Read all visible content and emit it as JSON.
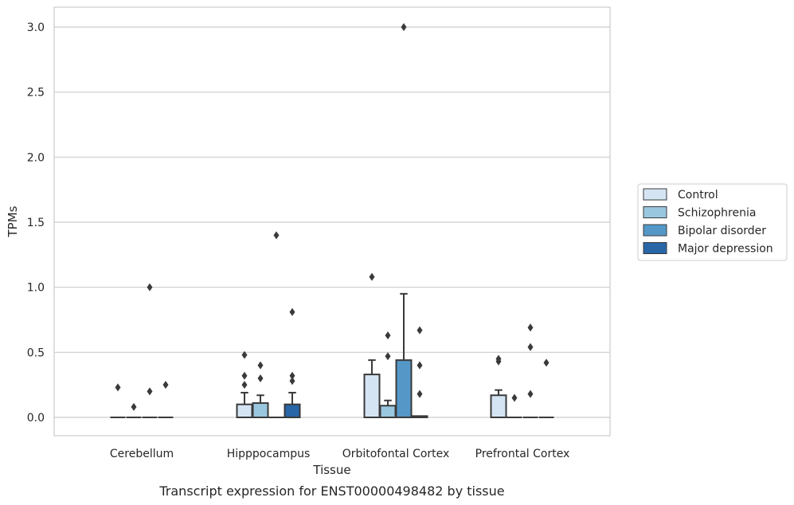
{
  "chart_data": {
    "type": "box",
    "title": "Transcript expression for ENST00000498482 by tissue",
    "xlabel": "Tissue",
    "ylabel": "TPMs",
    "ylim": [
      -0.15,
      3.15
    ],
    "yticks": [
      0.0,
      0.5,
      1.0,
      1.5,
      2.0,
      2.5,
      3.0
    ],
    "ytick_labels": [
      "0.0",
      "0.5",
      "1.0",
      "1.5",
      "2.0",
      "2.5",
      "3.0"
    ],
    "grid": "horizontal",
    "legend_position": "right",
    "categories": [
      "Cerebellum",
      "Hipppocampus",
      "Orbitofontal Cortex",
      "Prefrontal Cortex"
    ],
    "series": [
      {
        "name": "Control",
        "color": "#d4e4f3",
        "boxes": [
          {
            "q1": 0,
            "median": 0,
            "q3": 0,
            "whisker_low": 0,
            "whisker_high": 0,
            "outliers": [
              0.23
            ]
          },
          {
            "q1": 0,
            "median": 0,
            "q3": 0.1,
            "whisker_low": 0,
            "whisker_high": 0.19,
            "outliers": [
              0.25,
              0.32,
              0.48
            ]
          },
          {
            "q1": 0,
            "median": 0,
            "q3": 0.33,
            "whisker_low": 0,
            "whisker_high": 0.44,
            "outliers": [
              1.08
            ]
          },
          {
            "q1": 0,
            "median": 0,
            "q3": 0.17,
            "whisker_low": 0,
            "whisker_high": 0.21,
            "outliers": [
              0.43,
              0.45
            ]
          }
        ]
      },
      {
        "name": "Schizophrenia",
        "color": "#9ac7e0",
        "boxes": [
          {
            "q1": 0,
            "median": 0,
            "q3": 0,
            "whisker_low": 0,
            "whisker_high": 0,
            "outliers": [
              0.08
            ]
          },
          {
            "q1": 0,
            "median": 0,
            "q3": 0.11,
            "whisker_low": 0,
            "whisker_high": 0.17,
            "outliers": [
              0.3,
              0.4
            ]
          },
          {
            "q1": 0,
            "median": 0,
            "q3": 0.09,
            "whisker_low": 0,
            "whisker_high": 0.13,
            "outliers": [
              0.47,
              0.63
            ]
          },
          {
            "q1": 0,
            "median": 0,
            "q3": 0,
            "whisker_low": 0,
            "whisker_high": 0,
            "outliers": [
              0.15
            ]
          }
        ]
      },
      {
        "name": "Bipolar disorder",
        "color": "#5598c8",
        "boxes": [
          {
            "q1": 0,
            "median": 0,
            "q3": 0,
            "whisker_low": 0,
            "whisker_high": 0,
            "outliers": [
              0.2,
              1.0
            ]
          },
          {
            "q1": 0,
            "median": 0,
            "q3": 0,
            "whisker_low": 0,
            "whisker_high": 0,
            "outliers": [
              1.4
            ]
          },
          {
            "q1": 0,
            "median": 0,
            "q3": 0.44,
            "whisker_low": 0,
            "whisker_high": 0.95,
            "outliers": [
              3.0
            ]
          },
          {
            "q1": 0,
            "median": 0,
            "q3": 0,
            "whisker_low": 0,
            "whisker_high": 0,
            "outliers": [
              0.18,
              0.54,
              0.69
            ]
          }
        ]
      },
      {
        "name": "Major depression",
        "color": "#2866a8",
        "boxes": [
          {
            "q1": 0,
            "median": 0,
            "q3": 0,
            "whisker_low": 0,
            "whisker_high": 0,
            "outliers": [
              0.25
            ]
          },
          {
            "q1": 0,
            "median": 0,
            "q3": 0.1,
            "whisker_low": 0,
            "whisker_high": 0.19,
            "outliers": [
              0.28,
              0.32,
              0.81
            ]
          },
          {
            "q1": 0,
            "median": 0,
            "q3": 0.01,
            "whisker_low": 0,
            "whisker_high": 0.01,
            "outliers": [
              0.18,
              0.4,
              0.67
            ]
          },
          {
            "q1": 0,
            "median": 0,
            "q3": 0,
            "whisker_low": 0,
            "whisker_high": 0,
            "outliers": [
              0.42
            ]
          }
        ]
      }
    ]
  }
}
